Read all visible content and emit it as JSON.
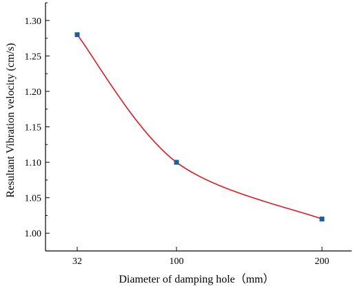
{
  "chart_data": {
    "type": "line",
    "x": [
      32,
      100,
      200
    ],
    "categories": [
      "32",
      "100",
      "200"
    ],
    "series": [
      {
        "values": [
          1.28,
          1.1,
          1.02
        ]
      }
    ],
    "xlabel": "Diameter of damping hole（mm）",
    "ylabel": "Resultant Vibration velocity (cm/s)",
    "ylim": [
      0.975,
      1.325
    ],
    "yticks": [
      "1.00",
      "1.05",
      "1.10",
      "1.15",
      "1.20",
      "1.25",
      "1.30"
    ],
    "grid": false,
    "line_color": "#e8141b",
    "marker_color": "#1a5f9e",
    "marker": "square",
    "smoothed": true
  }
}
